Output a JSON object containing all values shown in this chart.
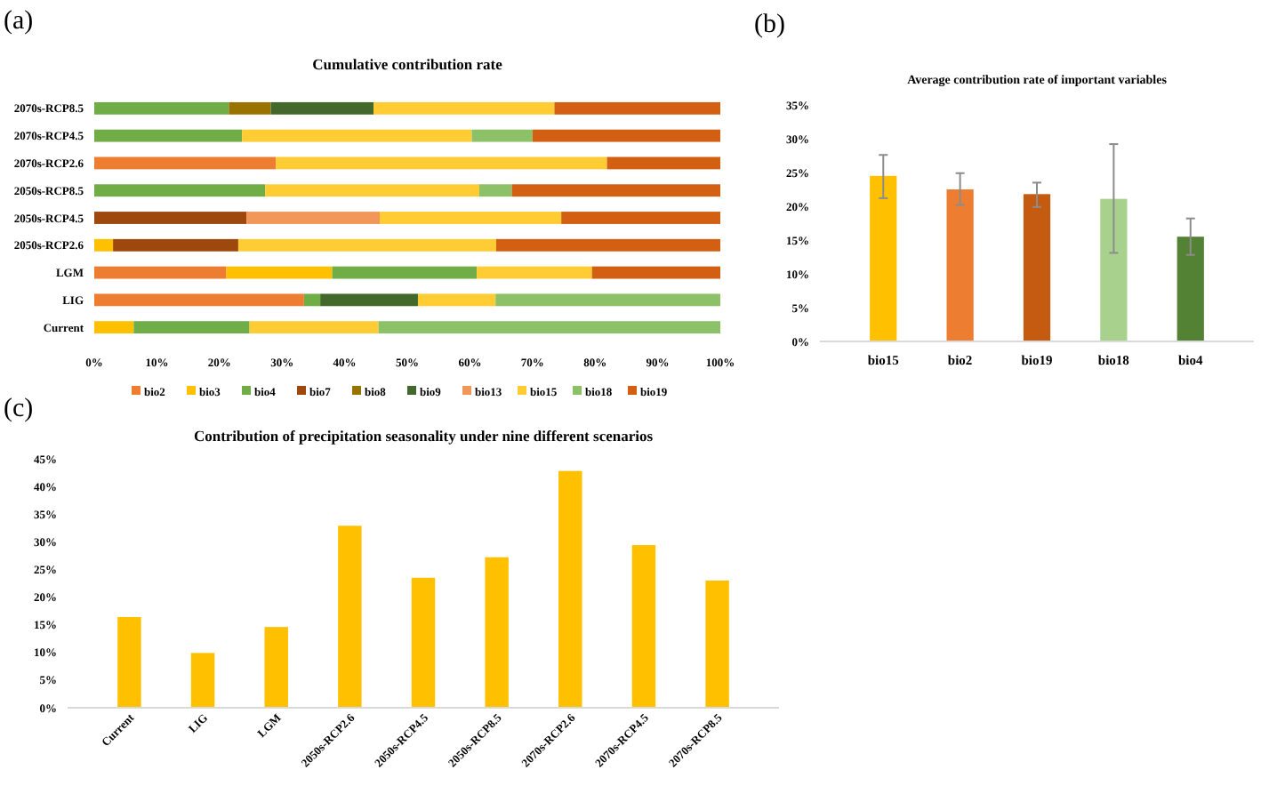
{
  "chart_data": [
    {
      "type": "bar",
      "title": "Cumulative contribution rate",
      "annotations": [
        "(a)"
      ],
      "orientation": "horizontal",
      "stacked": true,
      "legend": "bottom",
      "categories": [
        "2070s-RCP8.5",
        "2070s-RCP4.5",
        "2070s-RCP2.6",
        "2050s-RCP8.5",
        "2050s-RCP4.5",
        "2050s-RCP2.6",
        "LGM",
        "LIG",
        "Current"
      ],
      "xlim": [
        0,
        100
      ],
      "xticks": [
        {
          "value": 0,
          "label": "0%"
        },
        {
          "value": 10,
          "label": "10%"
        },
        {
          "value": 20,
          "label": "20%"
        },
        {
          "value": 30,
          "label": "30%"
        },
        {
          "value": 40,
          "label": "40%"
        },
        {
          "value": 50,
          "label": "50%"
        },
        {
          "value": 60,
          "label": "60%"
        },
        {
          "value": 70,
          "label": "70%"
        },
        {
          "value": 80,
          "label": "80%"
        },
        {
          "value": 90,
          "label": "90%"
        },
        {
          "value": 100,
          "label": "100%"
        }
      ],
      "series": [
        {
          "name": "bio2",
          "color": "#ed7d31",
          "values": [
            null,
            null,
            29.0,
            null,
            null,
            null,
            21.1,
            33.5,
            null
          ]
        },
        {
          "name": "bio3",
          "color": "#ffc000",
          "values": [
            null,
            null,
            null,
            null,
            null,
            3.0,
            16.9,
            null,
            6.3
          ]
        },
        {
          "name": "bio4",
          "color": "#70ad47",
          "values": [
            21.5,
            23.6,
            null,
            27.3,
            null,
            null,
            23.1,
            2.6,
            18.5
          ]
        },
        {
          "name": "bio7",
          "color": "#9e480e",
          "values": [
            null,
            null,
            null,
            null,
            24.3,
            20.0,
            null,
            null,
            null
          ]
        },
        {
          "name": "bio8",
          "color": "#997300",
          "values": [
            6.7,
            null,
            null,
            null,
            null,
            null,
            null,
            null,
            null
          ]
        },
        {
          "name": "bio9",
          "color": "#43682b",
          "values": [
            16.4,
            null,
            null,
            null,
            null,
            null,
            null,
            15.6,
            null
          ]
        },
        {
          "name": "bio13",
          "color": "#f1975a",
          "values": [
            null,
            null,
            null,
            null,
            21.3,
            null,
            null,
            null,
            null
          ]
        },
        {
          "name": "bio15",
          "color": "#ffcd33",
          "values": [
            28.9,
            36.7,
            52.9,
            34.2,
            29.0,
            41.2,
            18.4,
            12.4,
            20.6
          ]
        },
        {
          "name": "bio18",
          "color": "#8cc168",
          "values": [
            null,
            9.7,
            null,
            5.2,
            null,
            null,
            null,
            35.9,
            54.6
          ]
        },
        {
          "name": "bio19",
          "color": "#d35f12",
          "values": [
            26.5,
            30.0,
            18.1,
            33.3,
            25.4,
            35.8,
            20.5,
            null,
            null
          ]
        }
      ]
    },
    {
      "type": "bar",
      "title": "Average contribution rate of important variables",
      "annotations": [
        "(b)"
      ],
      "categories": [
        "bio15",
        "bio2",
        "bio19",
        "bio18",
        "bio4"
      ],
      "values": [
        24.5,
        22.5,
        21.8,
        21.1,
        15.5
      ],
      "colors": [
        "#ffc000",
        "#ed7d31",
        "#c55a11",
        "#a9d18e",
        "#548235"
      ],
      "errors": [
        [
          21.2,
          27.6
        ],
        [
          20.2,
          24.9
        ],
        [
          19.9,
          23.5
        ],
        [
          13.1,
          29.2
        ],
        [
          12.8,
          18.2
        ]
      ],
      "ylim": [
        0,
        35
      ],
      "yticks": [
        {
          "value": 0,
          "label": "0%"
        },
        {
          "value": 5,
          "label": "5%"
        },
        {
          "value": 10,
          "label": "10%"
        },
        {
          "value": 15,
          "label": "15%"
        },
        {
          "value": 20,
          "label": "20%"
        },
        {
          "value": 25,
          "label": "25%"
        },
        {
          "value": 30,
          "label": "30%"
        },
        {
          "value": 35,
          "label": "35%"
        }
      ]
    },
    {
      "type": "bar",
      "title": "Contribution of precipitation seasonality under nine different scenarios",
      "annotations": [
        "(c)"
      ],
      "categories": [
        "Current",
        "LIG",
        "LGM",
        "2050s-RCP2.6",
        "2050s-RCP4.5",
        "2050s-RCP8.5",
        "2070s-RCP2.6",
        "2070s-RCP4.5",
        "2070s-RCP8.5"
      ],
      "values": [
        16.4,
        9.9,
        14.6,
        32.9,
        23.5,
        27.2,
        42.8,
        29.4,
        23.0
      ],
      "color": "#ffc000",
      "ylim": [
        0,
        45
      ],
      "yticks": [
        {
          "value": 0,
          "label": "0%"
        },
        {
          "value": 5,
          "label": "5%"
        },
        {
          "value": 10,
          "label": "10%"
        },
        {
          "value": 15,
          "label": "15%"
        },
        {
          "value": 20,
          "label": "20%"
        },
        {
          "value": 25,
          "label": "25%"
        },
        {
          "value": 30,
          "label": "30%"
        },
        {
          "value": 35,
          "label": "35%"
        },
        {
          "value": 40,
          "label": "40%"
        },
        {
          "value": 45,
          "label": "45%"
        }
      ]
    }
  ]
}
